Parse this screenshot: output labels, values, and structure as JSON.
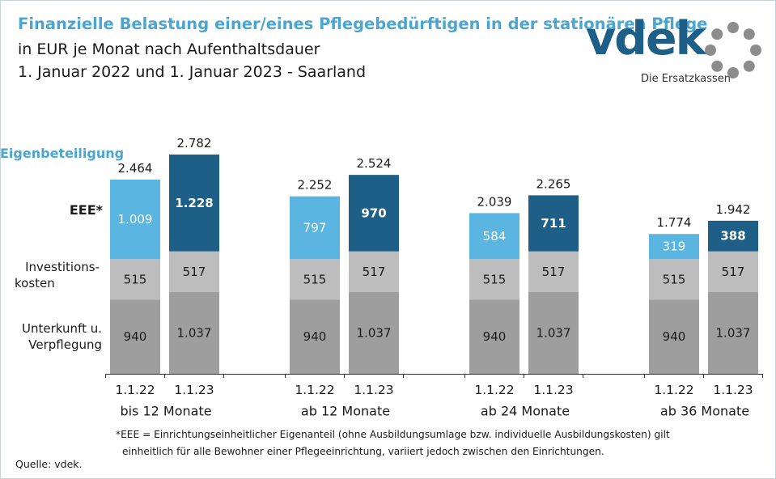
{
  "title": "Finanzielle Belastung einer/eines Pflegebedürftigen in der stationären Pflege",
  "subtitle1": "in EUR je Monat nach Aufenthaltsdauer",
  "subtitle2": "1. Januar 2022 und 1. Januar 2023 - Saarland",
  "logo": {
    "word": "vdek",
    "tagline": "Die Ersatzkassen"
  },
  "row_labels": {
    "eigenbeteiligung": "Eigenbeteiligung",
    "eee": "EEE*",
    "investitions_1": "Investitions-",
    "investitions_2": "kosten",
    "unterkunft_1": "Unterkunft u.",
    "unterkunft_2": "Verpflegung"
  },
  "footnote": {
    "line1": "*EEE = Einrichtungseinheitlicher  Eigenanteil (ohne Ausbildungsumlage bzw. individuelle Ausbildungskosten) gilt",
    "line2": "einheitlich für alle Bewohner einer Pflegeeinrichtung, variiert jedoch zwischen den Einrichtungen."
  },
  "source": "Quelle: vdek.",
  "colors": {
    "title": "#4aa6cf",
    "eee_2022": "#5bb5e1",
    "eee_2023": "#1d5f86",
    "invest": "#bdbdbd",
    "unterkunft": "#9e9e9e",
    "logo_dots": "#8c8c8c"
  },
  "chart_data": {
    "type": "bar",
    "stacked": true,
    "unit": "EUR je Monat",
    "groups": [
      "bis 12 Monate",
      "ab 12 Monate",
      "ab 24 Monate",
      "ab 36 Monate"
    ],
    "bar_labels": [
      "1.1.22",
      "1.1.23"
    ],
    "components": [
      "Unterkunft u. Verpflegung",
      "Investitionskosten",
      "EEE*"
    ],
    "bars": [
      {
        "group": "bis 12 Monate",
        "date": "1.1.22",
        "unterkunft": 940,
        "invest": 515,
        "eee": 1009,
        "total": 2464,
        "labels": {
          "unterkunft": "940",
          "invest": "515",
          "eee": "1.009",
          "total": "2.464"
        }
      },
      {
        "group": "bis 12 Monate",
        "date": "1.1.23",
        "unterkunft": 1037,
        "invest": 517,
        "eee": 1228,
        "total": 2782,
        "labels": {
          "unterkunft": "1.037",
          "invest": "517",
          "eee": "1.228",
          "total": "2.782"
        }
      },
      {
        "group": "ab 12 Monate",
        "date": "1.1.22",
        "unterkunft": 940,
        "invest": 515,
        "eee": 797,
        "total": 2252,
        "labels": {
          "unterkunft": "940",
          "invest": "515",
          "eee": "797",
          "total": "2.252"
        }
      },
      {
        "group": "ab 12 Monate",
        "date": "1.1.23",
        "unterkunft": 1037,
        "invest": 517,
        "eee": 970,
        "total": 2524,
        "labels": {
          "unterkunft": "1.037",
          "invest": "517",
          "eee": "970",
          "total": "2.524"
        }
      },
      {
        "group": "ab 24 Monate",
        "date": "1.1.22",
        "unterkunft": 940,
        "invest": 515,
        "eee": 584,
        "total": 2039,
        "labels": {
          "unterkunft": "940",
          "invest": "515",
          "eee": "584",
          "total": "2.039"
        }
      },
      {
        "group": "ab 24 Monate",
        "date": "1.1.23",
        "unterkunft": 1037,
        "invest": 517,
        "eee": 711,
        "total": 2265,
        "labels": {
          "unterkunft": "1.037",
          "invest": "517",
          "eee": "711",
          "total": "2.265"
        }
      },
      {
        "group": "ab 36 Monate",
        "date": "1.1.22",
        "unterkunft": 940,
        "invest": 515,
        "eee": 319,
        "total": 1774,
        "labels": {
          "unterkunft": "940",
          "invest": "515",
          "eee": "319",
          "total": "1.774"
        }
      },
      {
        "group": "ab 36 Monate",
        "date": "1.1.23",
        "unterkunft": 1037,
        "invest": 517,
        "eee": 388,
        "total": 1942,
        "labels": {
          "unterkunft": "1.037",
          "invest": "517",
          "eee": "388",
          "total": "1.942"
        }
      }
    ]
  }
}
